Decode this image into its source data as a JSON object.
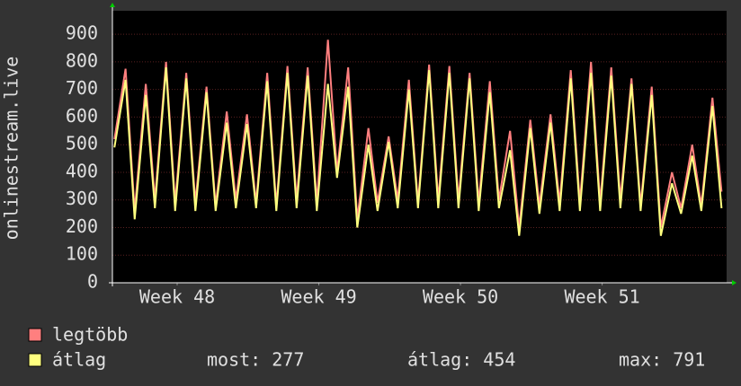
{
  "chart_data": {
    "type": "line",
    "y_label": "onlinestream.live",
    "x": [
      0.1,
      0.65,
      1.1,
      1.65,
      2.1,
      2.65,
      3.1,
      3.65,
      4.1,
      4.65,
      5.1,
      5.65,
      6.1,
      6.65,
      7.1,
      7.65,
      8.1,
      8.65,
      9.1,
      9.65,
      10.1,
      10.65,
      11.1,
      11.65,
      12.1,
      12.65,
      13.1,
      13.65,
      14.1,
      14.65,
      15.1,
      15.65,
      16.1,
      16.65,
      17.1,
      17.65,
      18.1,
      18.65,
      19.1,
      19.65,
      20.1,
      20.65,
      21.1,
      21.65,
      22.1,
      22.65,
      23.1,
      23.65,
      24.1,
      24.65,
      25.1,
      25.65,
      26.1,
      26.65,
      27.1,
      27.65,
      28.1,
      28.65,
      29.1,
      29.65,
      30.1
    ],
    "series": [
      {
        "name": "legtöbb",
        "color": "#ff7f7f",
        "values": [
          520,
          775,
          260,
          720,
          300,
          800,
          290,
          760,
          290,
          710,
          280,
          620,
          300,
          610,
          290,
          760,
          280,
          785,
          300,
          780,
          290,
          880,
          400,
          780,
          230,
          560,
          290,
          530,
          300,
          735,
          290,
          790,
          300,
          785,
          300,
          760,
          290,
          730,
          300,
          550,
          200,
          590,
          280,
          610,
          290,
          770,
          290,
          800,
          290,
          780,
          300,
          740,
          280,
          710,
          200,
          400,
          270,
          500,
          280,
          670,
          330
        ]
      },
      {
        "name": "átlag",
        "color": "#ffff7f",
        "values": [
          490,
          735,
          230,
          680,
          270,
          780,
          260,
          740,
          260,
          690,
          260,
          580,
          270,
          575,
          270,
          730,
          260,
          760,
          270,
          750,
          260,
          720,
          380,
          710,
          200,
          500,
          260,
          510,
          270,
          700,
          270,
          770,
          270,
          760,
          270,
          740,
          260,
          690,
          270,
          480,
          170,
          560,
          250,
          580,
          260,
          740,
          260,
          760,
          260,
          750,
          270,
          720,
          260,
          680,
          170,
          360,
          250,
          460,
          260,
          640,
          270
        ]
      }
    ],
    "xlim": [
      0,
      30.35
    ],
    "xticks": [
      {
        "value": 3.2,
        "label": "Week 48"
      },
      {
        "value": 10.2,
        "label": "Week 49"
      },
      {
        "value": 17.2,
        "label": "Week 50"
      },
      {
        "value": 24.2,
        "label": "Week 51"
      }
    ],
    "ylim": [
      0,
      985
    ],
    "yticks": [
      0,
      100,
      200,
      300,
      400,
      500,
      600,
      700,
      800,
      900
    ],
    "grid": true,
    "legend_stats": [
      "most: 277",
      "átlag: 454",
      "max: 791"
    ]
  }
}
